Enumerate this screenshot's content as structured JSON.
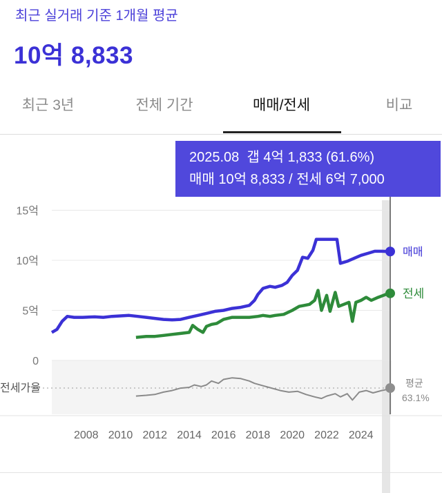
{
  "header": {
    "subtitle": "최근 실거래 기준 1개월 평균",
    "price": "10억 8,833"
  },
  "tabs": [
    {
      "label": "최근 3년",
      "active": false
    },
    {
      "label": "전체 기간",
      "active": false
    },
    {
      "label": "매매/전세",
      "active": true
    },
    {
      "label": "비교",
      "active": false
    }
  ],
  "tooltip": {
    "date": "2025.08",
    "gap": "갭 4억 1,833 (61.6%)",
    "line2": "매매 10억 8,833 / 전세 6억 7,000"
  },
  "colors": {
    "accent": "#3b31d6",
    "sale": "#3b31d6",
    "jeonse": "#2e8b3a",
    "ratio": "#8a8a8a",
    "tooltip_bg": "#5048dc"
  },
  "chart_data": {
    "type": "line",
    "y_ticks": [
      "15억",
      "10억",
      "5억",
      "0"
    ],
    "ylim": [
      0,
      15
    ],
    "x_ticks": [
      "2008",
      "2010",
      "2012",
      "2014",
      "2016",
      "2018",
      "2020",
      "2022",
      "2024"
    ],
    "xlim": [
      2006.0,
      2025.7
    ],
    "series": [
      {
        "name": "매매",
        "points": [
          [
            2006.0,
            2.8
          ],
          [
            2006.3,
            3.1
          ],
          [
            2006.6,
            3.9
          ],
          [
            2006.9,
            4.4
          ],
          [
            2007.3,
            4.3
          ],
          [
            2007.8,
            4.3
          ],
          [
            2008.5,
            4.35
          ],
          [
            2009.0,
            4.3
          ],
          [
            2009.5,
            4.4
          ],
          [
            2010.0,
            4.45
          ],
          [
            2010.5,
            4.5
          ],
          [
            2011.0,
            4.4
          ],
          [
            2011.5,
            4.3
          ],
          [
            2012.0,
            4.2
          ],
          [
            2012.5,
            4.1
          ],
          [
            2013.0,
            4.05
          ],
          [
            2013.5,
            4.1
          ],
          [
            2014.0,
            4.3
          ],
          [
            2014.5,
            4.5
          ],
          [
            2015.0,
            4.7
          ],
          [
            2015.5,
            4.9
          ],
          [
            2016.0,
            5.0
          ],
          [
            2016.5,
            5.2
          ],
          [
            2017.0,
            5.3
          ],
          [
            2017.5,
            5.5
          ],
          [
            2017.8,
            6.0
          ],
          [
            2018.0,
            6.6
          ],
          [
            2018.3,
            7.2
          ],
          [
            2018.7,
            7.4
          ],
          [
            2019.0,
            7.3
          ],
          [
            2019.4,
            7.5
          ],
          [
            2019.7,
            7.8
          ],
          [
            2020.0,
            8.5
          ],
          [
            2020.3,
            9.0
          ],
          [
            2020.6,
            10.3
          ],
          [
            2020.9,
            10.2
          ],
          [
            2021.2,
            11.0
          ],
          [
            2021.4,
            12.1
          ],
          [
            2022.0,
            12.1
          ],
          [
            2022.6,
            12.1
          ],
          [
            2022.8,
            9.7
          ],
          [
            2023.2,
            9.9
          ],
          [
            2023.6,
            10.2
          ],
          [
            2024.0,
            10.5
          ],
          [
            2024.4,
            10.7
          ],
          [
            2024.8,
            10.9
          ],
          [
            2025.2,
            10.9
          ],
          [
            2025.6,
            10.88
          ]
        ]
      },
      {
        "name": "전세",
        "points": [
          [
            2010.9,
            2.3
          ],
          [
            2011.5,
            2.4
          ],
          [
            2012.0,
            2.4
          ],
          [
            2012.5,
            2.5
          ],
          [
            2013.0,
            2.6
          ],
          [
            2013.5,
            2.7
          ],
          [
            2014.0,
            2.8
          ],
          [
            2014.2,
            3.5
          ],
          [
            2014.5,
            3.1
          ],
          [
            2014.8,
            2.8
          ],
          [
            2015.0,
            3.4
          ],
          [
            2015.3,
            3.6
          ],
          [
            2015.6,
            3.7
          ],
          [
            2016.0,
            4.1
          ],
          [
            2016.5,
            4.3
          ],
          [
            2017.0,
            4.3
          ],
          [
            2017.5,
            4.3
          ],
          [
            2018.0,
            4.4
          ],
          [
            2018.3,
            4.5
          ],
          [
            2018.7,
            4.4
          ],
          [
            2019.0,
            4.5
          ],
          [
            2019.5,
            4.6
          ],
          [
            2020.0,
            5.0
          ],
          [
            2020.4,
            5.4
          ],
          [
            2020.7,
            5.5
          ],
          [
            2021.0,
            5.6
          ],
          [
            2021.3,
            6.0
          ],
          [
            2021.5,
            7.0
          ],
          [
            2021.7,
            5.0
          ],
          [
            2022.0,
            6.5
          ],
          [
            2022.2,
            4.9
          ],
          [
            2022.5,
            6.8
          ],
          [
            2022.7,
            5.4
          ],
          [
            2023.0,
            5.6
          ],
          [
            2023.3,
            5.8
          ],
          [
            2023.5,
            3.9
          ],
          [
            2023.7,
            5.8
          ],
          [
            2024.0,
            6.0
          ],
          [
            2024.3,
            6.3
          ],
          [
            2024.6,
            6.0
          ],
          [
            2025.0,
            6.3
          ],
          [
            2025.3,
            6.5
          ],
          [
            2025.6,
            6.7
          ]
        ]
      },
      {
        "name": "전세가율",
        "points": [
          [
            2010.9,
            53
          ],
          [
            2011.5,
            54
          ],
          [
            2012.0,
            55
          ],
          [
            2012.5,
            58
          ],
          [
            2013.0,
            60
          ],
          [
            2013.5,
            63
          ],
          [
            2014.0,
            64
          ],
          [
            2014.3,
            67
          ],
          [
            2014.7,
            65
          ],
          [
            2015.0,
            67
          ],
          [
            2015.3,
            72
          ],
          [
            2015.7,
            69
          ],
          [
            2016.0,
            74
          ],
          [
            2016.5,
            76
          ],
          [
            2017.0,
            75
          ],
          [
            2017.5,
            72
          ],
          [
            2017.8,
            69
          ],
          [
            2018.3,
            66
          ],
          [
            2018.8,
            63
          ],
          [
            2019.3,
            60
          ],
          [
            2019.8,
            58
          ],
          [
            2020.3,
            59
          ],
          [
            2020.8,
            55
          ],
          [
            2021.3,
            52
          ],
          [
            2021.7,
            50
          ],
          [
            2022.0,
            53
          ],
          [
            2022.5,
            56
          ],
          [
            2022.8,
            52
          ],
          [
            2023.2,
            56
          ],
          [
            2023.5,
            48
          ],
          [
            2023.9,
            58
          ],
          [
            2024.3,
            60
          ],
          [
            2024.7,
            57
          ],
          [
            2025.2,
            60
          ],
          [
            2025.6,
            61.6
          ]
        ]
      }
    ],
    "labels": {
      "sale": "매매",
      "jeonse": "전세",
      "ratio": "전세가율",
      "avg_label": "평균",
      "avg_value": "63.1%"
    },
    "ratio_avg": 63.1,
    "grid": true,
    "legend": "right"
  }
}
